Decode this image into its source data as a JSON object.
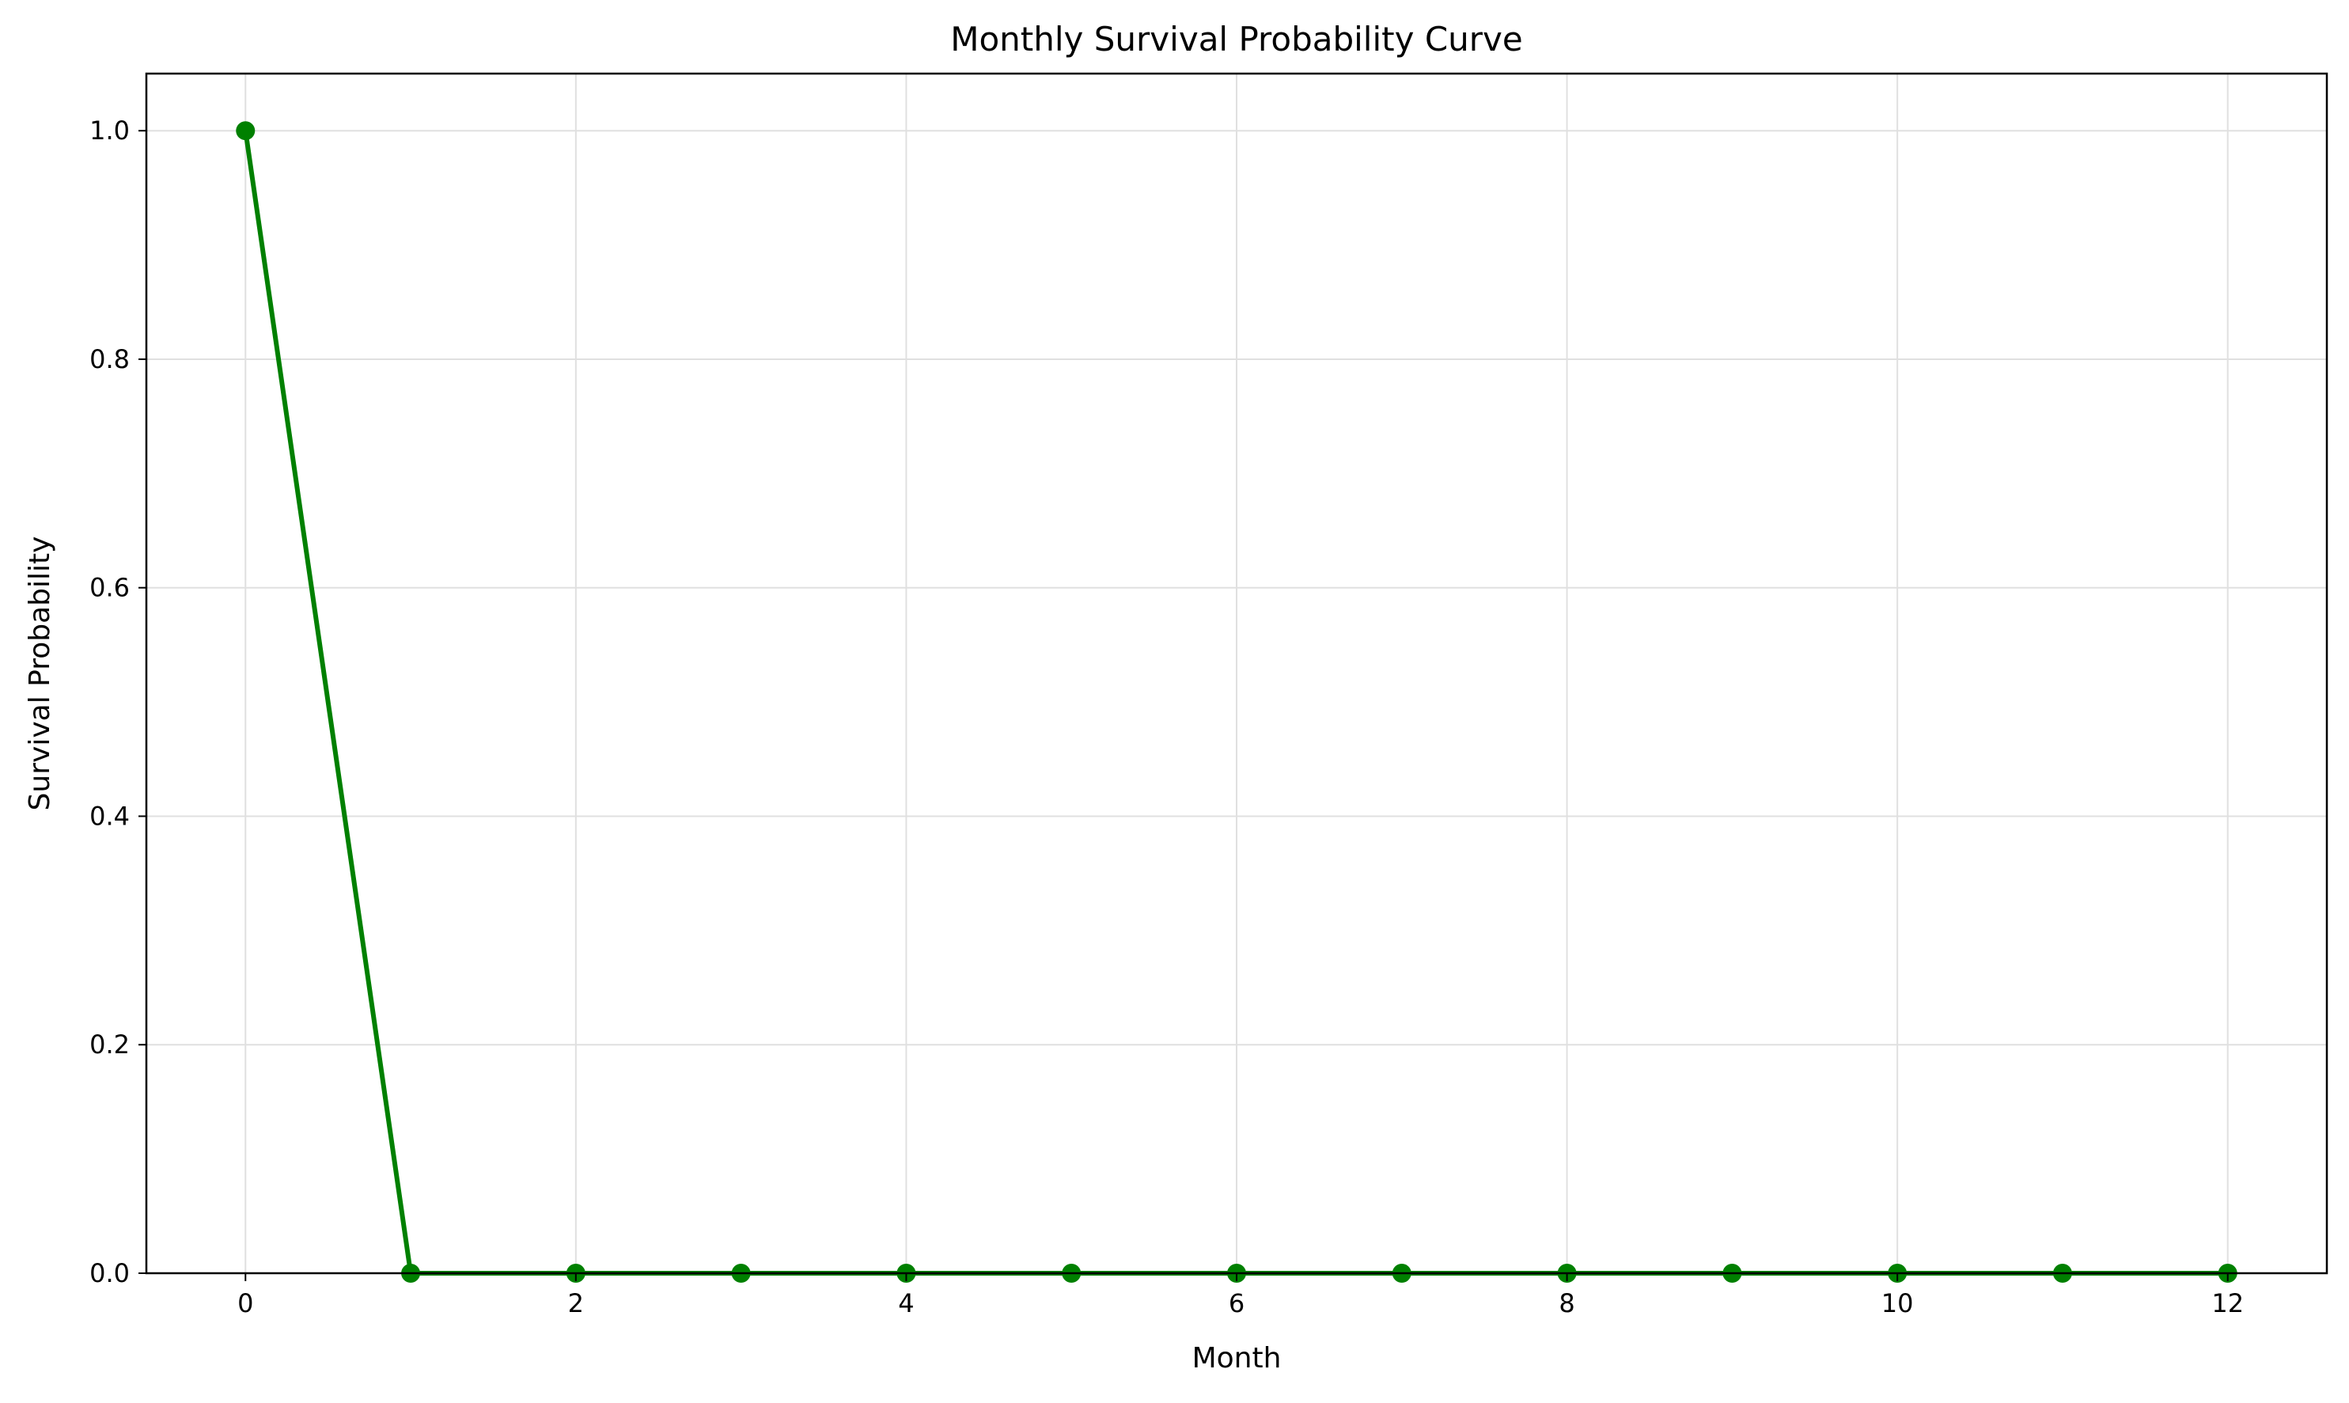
{
  "chart_data": {
    "type": "line",
    "title": "Monthly Survival Probability Curve",
    "xlabel": "Month",
    "ylabel": "Survival Probability",
    "x": [
      0,
      1,
      2,
      3,
      4,
      5,
      6,
      7,
      8,
      9,
      10,
      11,
      12
    ],
    "series": [
      {
        "values": [
          1.0,
          0.0,
          0.0,
          0.0,
          0.0,
          0.0,
          0.0,
          0.0,
          0.0,
          0.0,
          0.0,
          0.0,
          0.0
        ],
        "color": "#008000",
        "marker": "circle"
      }
    ],
    "xlim": [
      -0.6,
      12.6
    ],
    "ylim": [
      0.0,
      1.05
    ],
    "xticks": [
      0,
      2,
      4,
      6,
      8,
      10,
      12
    ],
    "xtick_labels": [
      "0",
      "2",
      "4",
      "6",
      "8",
      "10",
      "12"
    ],
    "yticks": [
      0.0,
      0.2,
      0.4,
      0.6,
      0.8,
      1.0
    ],
    "ytick_labels": [
      "0.0",
      "0.2",
      "0.4",
      "0.6",
      "0.8",
      "1.0"
    ],
    "grid": true,
    "grid_color": "#e0e0e0",
    "legend": "none"
  }
}
